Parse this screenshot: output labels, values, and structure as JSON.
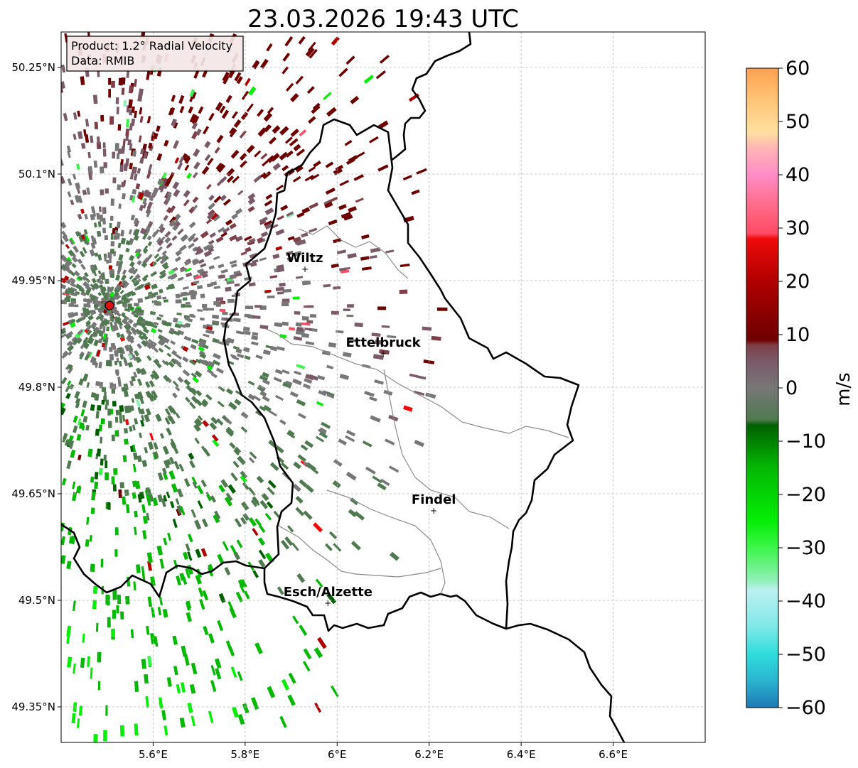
{
  "title": "23.03.2026 19:43 UTC",
  "info_box": {
    "product": "Product: 1.2° Radial Velocity",
    "data": "Data: RMIB"
  },
  "map": {
    "lon_range": [
      5.4,
      6.8
    ],
    "lat_range": [
      49.3,
      50.3
    ],
    "x_ticks": [
      {
        "value": 5.6,
        "label": "5.6°E"
      },
      {
        "value": 5.8,
        "label": "5.8°E"
      },
      {
        "value": 6.0,
        "label": "6°E"
      },
      {
        "value": 6.2,
        "label": "6.2°E"
      },
      {
        "value": 6.4,
        "label": "6.4°E"
      },
      {
        "value": 6.6,
        "label": "6.6°E"
      }
    ],
    "y_ticks": [
      {
        "value": 49.35,
        "label": "49.35°N"
      },
      {
        "value": 49.5,
        "label": "49.5°N"
      },
      {
        "value": 49.65,
        "label": "49.65°N"
      },
      {
        "value": 49.8,
        "label": "49.8°N"
      },
      {
        "value": 49.95,
        "label": "49.95°N"
      },
      {
        "value": 50.1,
        "label": "50.1°N"
      },
      {
        "value": 50.25,
        "label": "50.25°N"
      }
    ],
    "radar_site": {
      "lon": 5.505,
      "lat": 49.915
    },
    "cities": [
      {
        "name": "Wiltz",
        "lon": 5.93,
        "lat": 49.966
      },
      {
        "name": "Ettelbruck",
        "lon": 6.1,
        "lat": 49.847
      },
      {
        "name": "Findel",
        "lon": 6.21,
        "lat": 49.626
      },
      {
        "name": "Esch/Alzette",
        "lon": 5.98,
        "lat": 49.496
      }
    ]
  },
  "colorbar": {
    "label": "m/s",
    "min": -60,
    "max": 60,
    "ticks": [
      {
        "value": 60,
        "label": "60"
      },
      {
        "value": 50,
        "label": "50"
      },
      {
        "value": 40,
        "label": "40"
      },
      {
        "value": 30,
        "label": "30"
      },
      {
        "value": 20,
        "label": "20"
      },
      {
        "value": 10,
        "label": "10"
      },
      {
        "value": 0,
        "label": "0"
      },
      {
        "value": -10,
        "label": "−10"
      },
      {
        "value": -20,
        "label": "−20"
      },
      {
        "value": -30,
        "label": "−30"
      },
      {
        "value": -40,
        "label": "−40"
      },
      {
        "value": -50,
        "label": "−50"
      },
      {
        "value": -60,
        "label": "−60"
      }
    ],
    "stops": [
      {
        "v": -60,
        "color": "#1f78b4"
      },
      {
        "v": -55,
        "color": "#2ab4d0"
      },
      {
        "v": -50,
        "color": "#2fdcdc"
      },
      {
        "v": -45,
        "color": "#7de8e8"
      },
      {
        "v": -38,
        "color": "#bdf0f0"
      },
      {
        "v": -36,
        "color": "#8ef0b4"
      },
      {
        "v": -30,
        "color": "#3df54a"
      },
      {
        "v": -25,
        "color": "#05ee05"
      },
      {
        "v": -15,
        "color": "#04b804"
      },
      {
        "v": -7,
        "color": "#006000"
      },
      {
        "v": -6,
        "color": "#4f7a4f"
      },
      {
        "v": 0,
        "color": "#777777"
      },
      {
        "v": 5,
        "color": "#7a5a68"
      },
      {
        "v": 8,
        "color": "#7e3f48"
      },
      {
        "v": 9,
        "color": "#6e0000"
      },
      {
        "v": 20,
        "color": "#b00000"
      },
      {
        "v": 28,
        "color": "#f00a0a"
      },
      {
        "v": 29,
        "color": "#ff4a64"
      },
      {
        "v": 35,
        "color": "#ff6f8f"
      },
      {
        "v": 40,
        "color": "#ff8cc8"
      },
      {
        "v": 45,
        "color": "#ffb4b4"
      },
      {
        "v": 48,
        "color": "#ffe0a0"
      },
      {
        "v": 55,
        "color": "#ffbf70"
      },
      {
        "v": 60,
        "color": "#ffa050"
      }
    ]
  }
}
